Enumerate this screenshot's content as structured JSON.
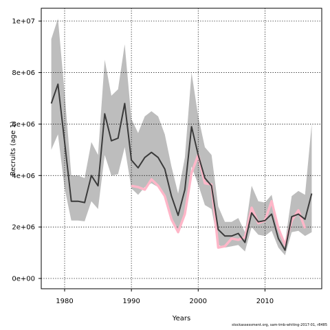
{
  "chart_data": {
    "type": "line",
    "xlabel": "Years",
    "ylabel": "Recruits (age 1)",
    "x_ticks": [
      1980,
      1990,
      2000,
      2010
    ],
    "y_tick_labels": [
      "0e+00",
      "2e+06",
      "4e+06",
      "6e+06",
      "8e+06",
      "1e+07"
    ],
    "y_ticks": [
      0,
      2000000,
      4000000,
      6000000,
      8000000,
      10000000
    ],
    "xlim": [
      1976.5,
      2018.5
    ],
    "ylim": [
      -400000,
      10500000
    ],
    "grid": true,
    "x": [
      1978,
      1979,
      1980,
      1981,
      1982,
      1983,
      1984,
      1985,
      1986,
      1987,
      1988,
      1989,
      1990,
      1991,
      1992,
      1993,
      1994,
      1995,
      1996,
      1997,
      1998,
      1999,
      2000,
      2001,
      2002,
      2003,
      2004,
      2005,
      2006,
      2007,
      2008,
      2009,
      2010,
      2011,
      2012,
      2013,
      2014,
      2015,
      2016,
      2017
    ],
    "series": [
      {
        "values": [
          6800000,
          7550000,
          5300000,
          3000000,
          3000000,
          2950000,
          4000000,
          3600000,
          6400000,
          5350000,
          5450000,
          6800000,
          4600000,
          4300000,
          4700000,
          4900000,
          4700000,
          4250000,
          3200000,
          2450000,
          3450000,
          5900000,
          4800000,
          3900000,
          3600000,
          1900000,
          1650000,
          1650000,
          1750000,
          1400000,
          2550000,
          2200000,
          2250000,
          2500000,
          1550000,
          1100000,
          2400000,
          2500000,
          2300000,
          3300000
        ],
        "color": "#3a3a3a"
      },
      {
        "values": [
          null,
          null,
          null,
          null,
          null,
          null,
          null,
          null,
          null,
          null,
          null,
          null,
          3600000,
          3550000,
          3450000,
          3850000,
          3600000,
          3200000,
          2300000,
          1800000,
          2500000,
          4100000,
          4800000,
          3700000,
          3650000,
          1200000,
          1250000,
          1550000,
          1500000,
          1600000,
          2750000,
          2150000,
          2250000,
          3000000,
          1950000,
          1300000,
          2250000,
          2650000,
          1950000,
          null
        ],
        "color": "#ffb6c8"
      }
    ],
    "band": {
      "lower": [
        5000000,
        5600000,
        3500000,
        2250000,
        2250000,
        2220000,
        3000000,
        2700000,
        4800000,
        4000000,
        4050000,
        5100000,
        3500000,
        3250000,
        3550000,
        3700000,
        3550000,
        3150000,
        2350000,
        1800000,
        2500000,
        4350000,
        3650000,
        2850000,
        2700000,
        1300000,
        1200000,
        1250000,
        1300000,
        1050000,
        2000000,
        1700000,
        1650000,
        1850000,
        1200000,
        900000,
        1800000,
        1850000,
        1650000,
        1800000
      ],
      "upper": [
        9300000,
        10100000,
        7200000,
        4000000,
        4000000,
        3900000,
        5300000,
        4800000,
        8500000,
        7100000,
        7350000,
        9100000,
        6200000,
        5650000,
        6300000,
        6500000,
        6300000,
        5600000,
        4350000,
        3300000,
        4700000,
        8000000,
        6300000,
        5100000,
        4800000,
        2800000,
        2200000,
        2200000,
        2350000,
        1800000,
        3600000,
        3000000,
        2950000,
        3250000,
        2000000,
        1400000,
        3200000,
        3400000,
        3250000,
        6000000
      ],
      "color": "#bdbdbd"
    }
  },
  "footer": "stockassessment.org, sam-tmb-whiting-2017-01, r8485"
}
